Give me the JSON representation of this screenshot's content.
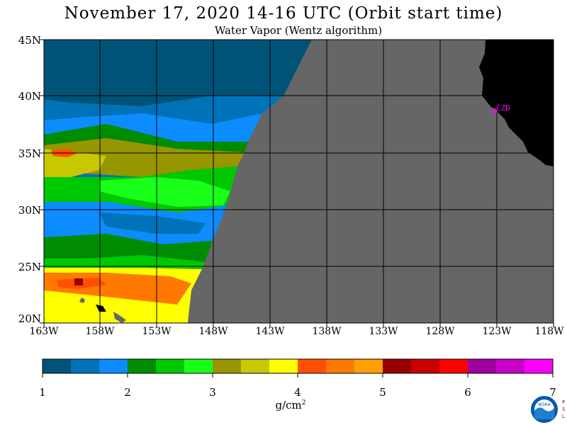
{
  "title": "November 17, 2020  14-16 UTC  (Orbit start time)",
  "subtitle": "Water Vapor (Wentz algorithm)",
  "map": {
    "lat_labels": [
      "45N",
      "40N",
      "35N",
      "30N",
      "25N",
      "20N"
    ],
    "lon_labels": [
      "163W",
      "158W",
      "153W",
      "148W",
      "143W",
      "138W",
      "133W",
      "128W",
      "123W",
      "118W"
    ],
    "station_label": "CZD",
    "no_data_color": "#666666",
    "land_color": "#000000",
    "station_color": "#ff00ff"
  },
  "colorbar": {
    "colors": [
      "#005377",
      "#0072b8",
      "#0c8cff",
      "#008c00",
      "#00c800",
      "#19ff19",
      "#969600",
      "#c8c800",
      "#ffff00",
      "#ff5000",
      "#ff7800",
      "#ffa000",
      "#960000",
      "#c80000",
      "#ff0000",
      "#a000a0",
      "#c800c8",
      "#ff00ff"
    ],
    "ticks": [
      "1",
      "2",
      "3",
      "4",
      "5",
      "6",
      "7"
    ],
    "units": "g/cm",
    "units_sup": "2"
  },
  "logo": {
    "text": "NOAA",
    "side_letters": [
      "P",
      "S",
      "L"
    ]
  }
}
